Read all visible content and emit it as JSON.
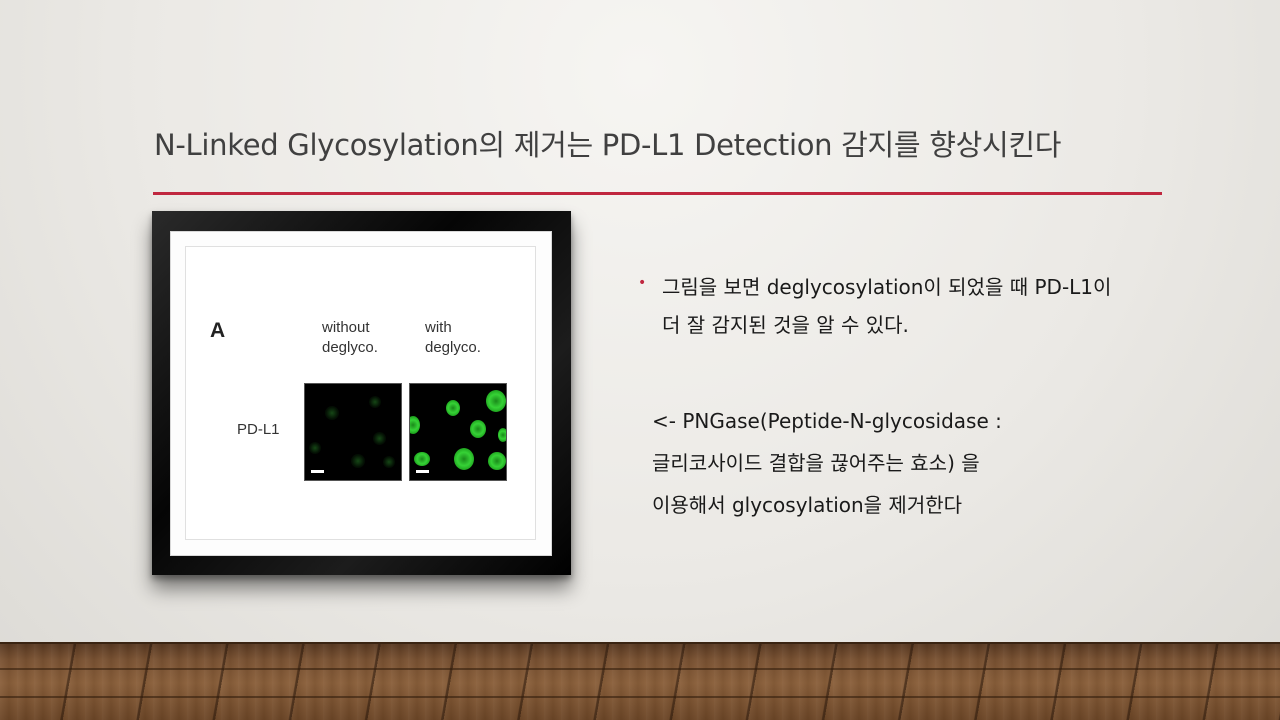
{
  "slide": {
    "title": "N-Linked Glycosylation의 제거는 PD-L1 Detection 감지를 향상시킨다",
    "accent_color": "#c0273f"
  },
  "figure": {
    "panel_letter": "A",
    "column_1": [
      "without",
      "deglyco."
    ],
    "column_2": [
      "with",
      "deglyco."
    ],
    "row_label": "PD-L1",
    "fluorescence_color": "#36d236"
  },
  "bullet": {
    "text": "그림을 보면 deglycosylation이 되었을 때 PD-L1이 더 잘 감지된 것을 알 수 있다."
  },
  "note": {
    "lines": [
      "<- PNGase(Peptide-N-glycosidase :",
      "글리코사이드 결합을 끊어주는 효소) 을",
      "이용해서 glycosylation을 제거한다"
    ]
  }
}
